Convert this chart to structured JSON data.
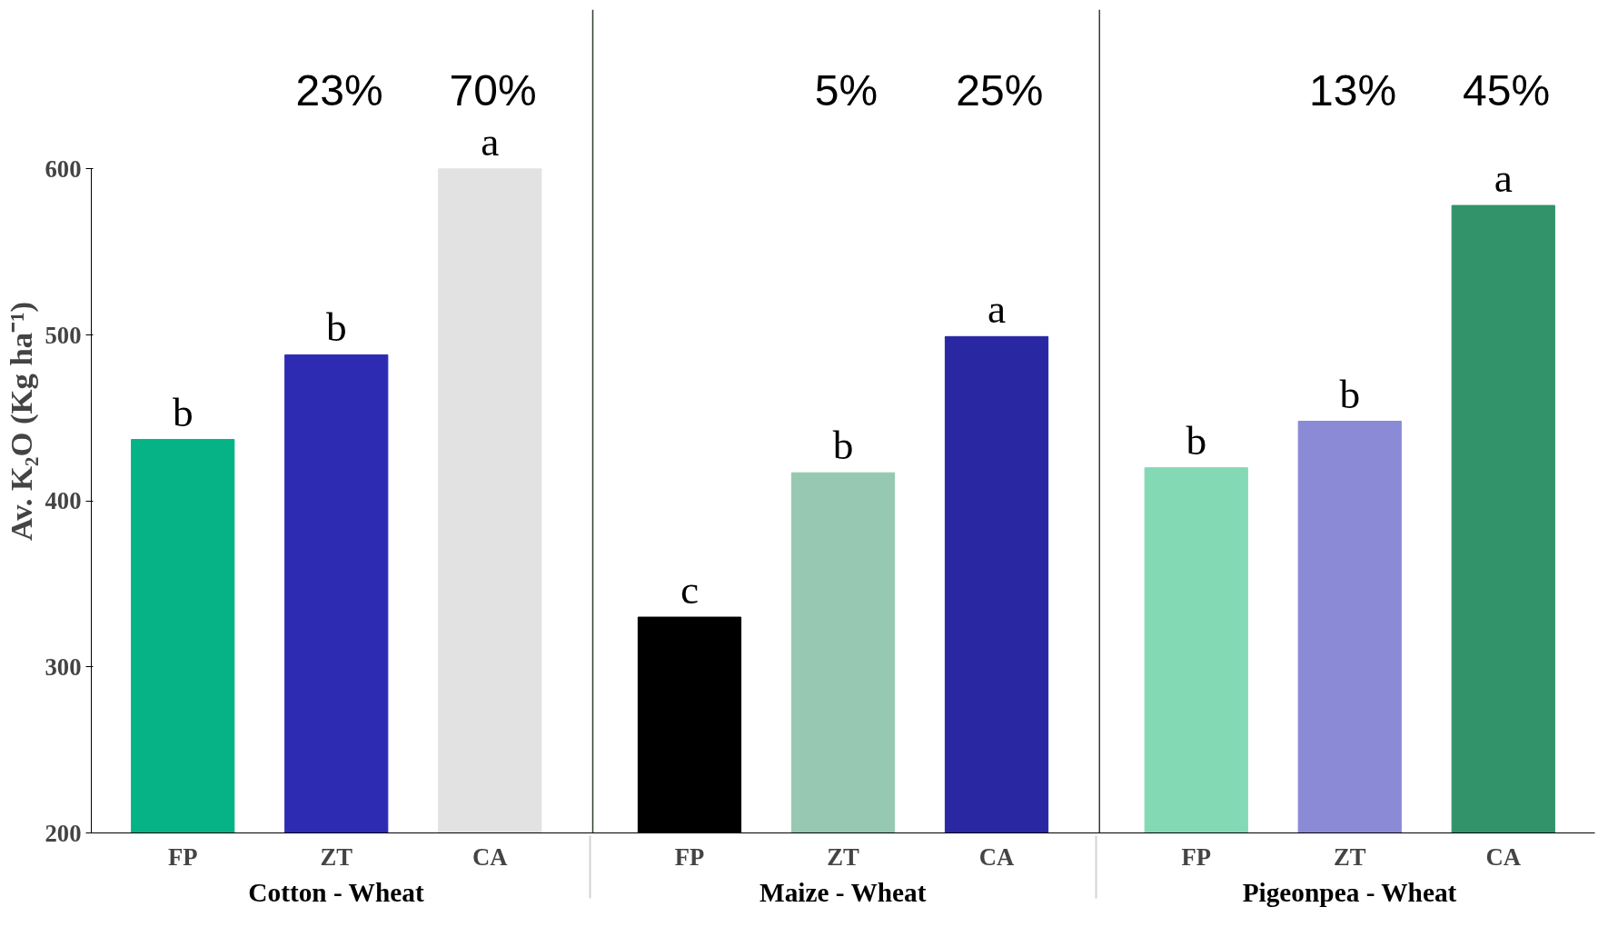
{
  "chart_data": {
    "type": "bar",
    "ylabel": "Av. K₂O (Kg ha⁻¹)",
    "categories": [
      "FP",
      "ZT",
      "CA",
      "FP",
      "ZT",
      "CA",
      "FP",
      "ZT",
      "CA"
    ],
    "values": [
      437,
      488,
      600,
      330,
      417,
      499,
      420,
      448,
      578
    ],
    "colors": [
      "#05b386",
      "#2e2bb3",
      "#e2e2e2",
      "#000000",
      "#97c8b1",
      "#2a27a3",
      "#84d9b5",
      "#8b8ad6",
      "#32936a"
    ],
    "value_labels": [
      "b",
      "b",
      "a",
      "c",
      "b",
      "a",
      "b",
      "b",
      "a"
    ],
    "annotations": [
      "23%",
      "70%",
      "5%",
      "25%",
      "13%",
      "45%",
      "Cotton - Wheat",
      "Maize - Wheat",
      "Pigeonpea - Wheat"
    ],
    "ylim": [
      200,
      600
    ],
    "yticks": [
      200,
      300,
      400,
      500,
      600
    ],
    "grid": false
  }
}
